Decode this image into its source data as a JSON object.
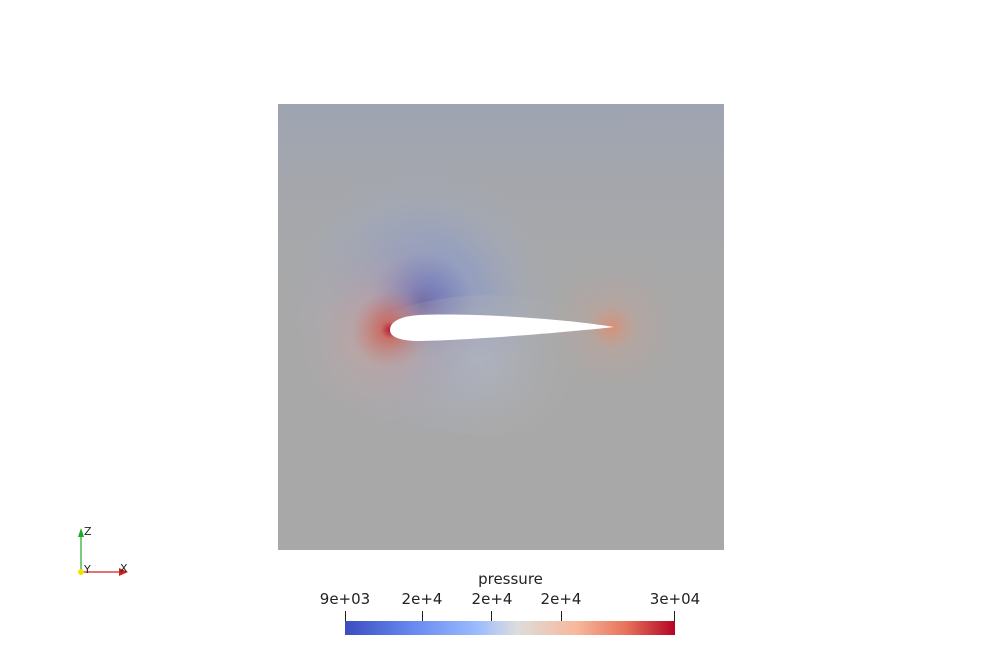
{
  "scene": {
    "domain_colors": {
      "far_field": "#a8a8a8",
      "suction": "#3b4cc0",
      "stagnation": "#b40426",
      "airfoil": "#ffffff"
    }
  },
  "colorbar": {
    "title": "pressure",
    "tick_labels": [
      "9e+03",
      "2e+4",
      "2e+4",
      "2e+4",
      "3e+04"
    ],
    "colormap": "cool-to-warm"
  },
  "orientation_axes": {
    "z_label": "Z",
    "y_label": "Y",
    "x_label": "X",
    "z_color": "#22aa22",
    "x_color": "#cc2222",
    "y_color": "#e8e800"
  }
}
